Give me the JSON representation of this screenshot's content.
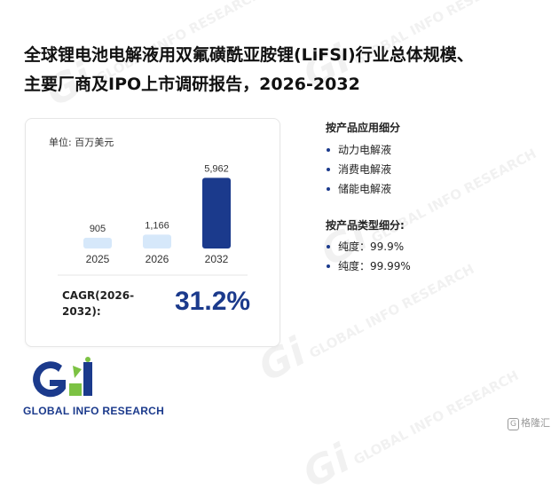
{
  "title_line1": "全球锂电池电解液用双氟磺酰亚胺锂(LiFSI)行业总体规模、",
  "title_line2": "主要厂商及IPO上市调研报告，2026-2032",
  "unit_label": "单位: 百万美元",
  "cagr": {
    "label_line1": "CAGR(2026-",
    "label_line2": "2032):",
    "value": "31.2%"
  },
  "application_section": {
    "title": "按产品应用细分",
    "items": [
      "动力电解液",
      "消费电解液",
      "储能电解液"
    ]
  },
  "type_section": {
    "title": "按产品类型细分:",
    "items": [
      "纯度：99.9%",
      "纯度：99.99%"
    ]
  },
  "logo_text": "GLOBAL INFO RESEARCH",
  "watermark": {
    "mark": "Gi",
    "text": "GLOBAL INFO RESEARCH"
  },
  "source_badge": {
    "glyph": "G",
    "text": "格隆汇"
  },
  "colors": {
    "accent": "#1b3a8c",
    "light_bar": "#d6e8fa",
    "logo_green": "#7cc243"
  },
  "chart_data": {
    "type": "bar",
    "categories": [
      "2025",
      "2026",
      "2032"
    ],
    "values": [
      905,
      1166,
      5962
    ],
    "value_labels": [
      "905",
      "1,166",
      "5,962"
    ],
    "ylim": [
      0,
      6500
    ],
    "bar_colors": [
      "#d6e8fa",
      "#d6e8fa",
      "#1b3a8c"
    ],
    "xlabel": "",
    "ylabel": ""
  }
}
